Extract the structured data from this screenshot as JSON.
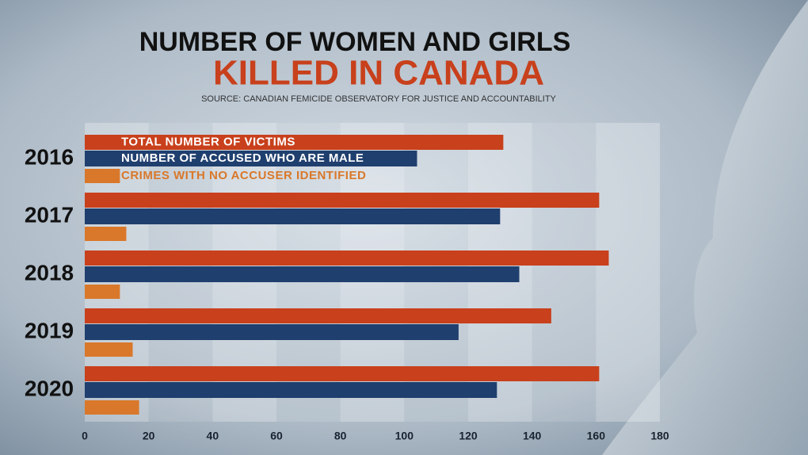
{
  "chart_data": {
    "type": "hbar",
    "title": "NUMBER OF WOMEN AND GIRLS",
    "subtitle": "KILLED IN CANADA",
    "source": "SOURCE: CANADIAN FEMICIDE OBSERVATORY FOR JUSTICE AND ACCOUNTABILITY",
    "categories": [
      "2016",
      "2017",
      "2018",
      "2019",
      "2020"
    ],
    "series": [
      {
        "name": "TOTAL NUMBER OF VICTIMS",
        "color": "#c8401c",
        "values": [
          131,
          161,
          164,
          146,
          161
        ]
      },
      {
        "name": "NUMBER OF ACCUSED WHO ARE MALE",
        "color": "#1f3f6e",
        "values": [
          104,
          130,
          136,
          117,
          129
        ]
      },
      {
        "name": "CRIMES WITH NO ACCUSER IDENTIFIED",
        "color": "#d9782a",
        "values": [
          11,
          13,
          11,
          15,
          17
        ]
      }
    ],
    "xlim": [
      0,
      180
    ],
    "xticks": [
      0,
      20,
      40,
      60,
      80,
      100,
      120,
      140,
      160,
      180
    ],
    "grid": true
  }
}
